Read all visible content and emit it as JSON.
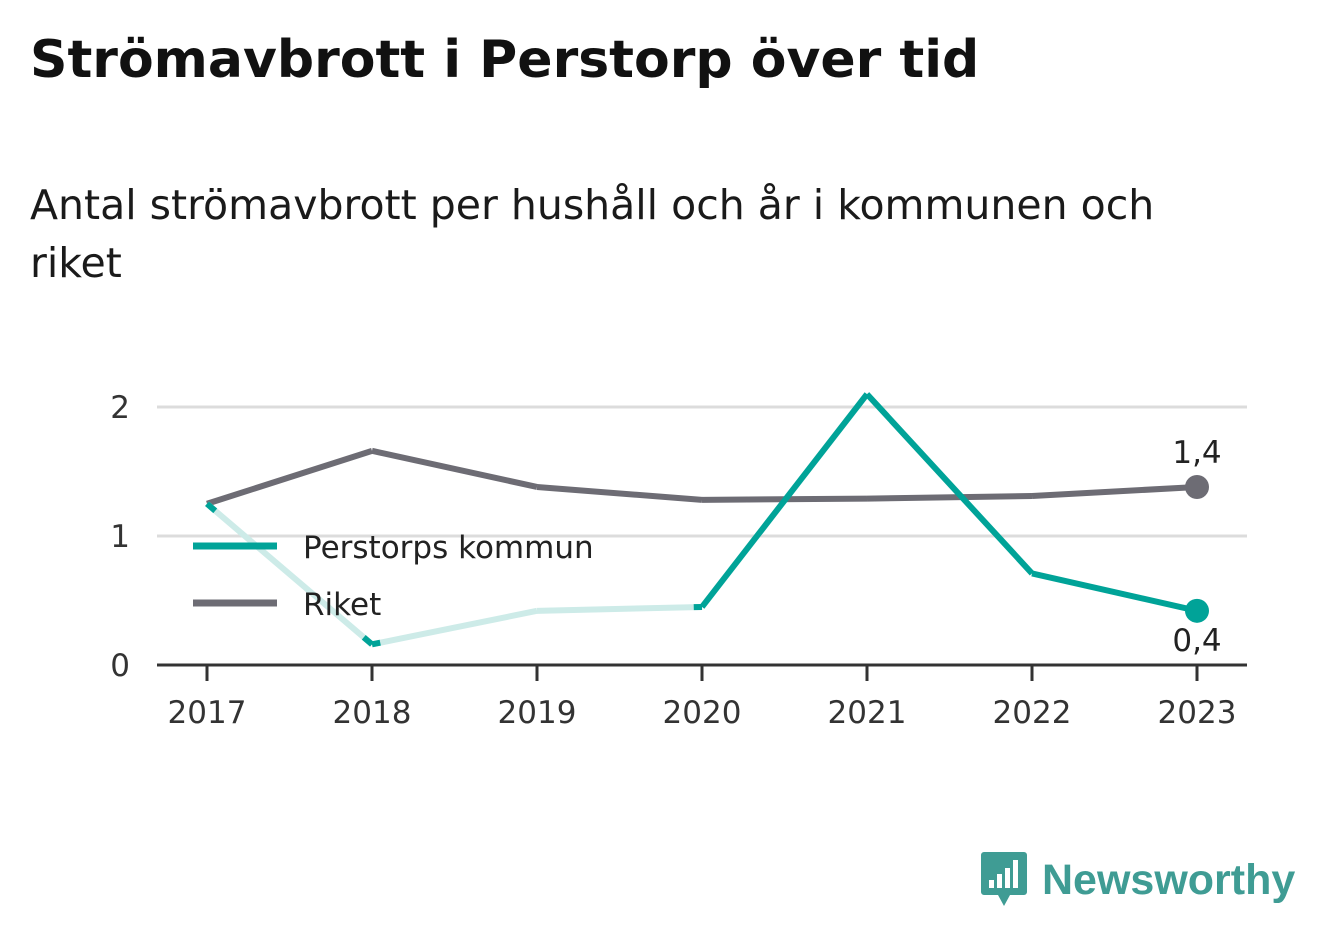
{
  "header": {
    "title": "Strömavbrott i Perstorp över tid",
    "subtitle": "Antal strömavbrott per hushåll och år i kommunen och riket"
  },
  "logo": {
    "text": "Newsworthy",
    "icon": "bar-chart-speech-bubble-icon",
    "color": "#3f9c94"
  },
  "chart_data": {
    "type": "line",
    "title": "Strömavbrott i Perstorp över tid",
    "subtitle": "Antal strömavbrott per hushåll och år i kommunen och riket",
    "xlabel": "",
    "ylabel": "",
    "categories": [
      "2017",
      "2018",
      "2019",
      "2020",
      "2021",
      "2022",
      "2023"
    ],
    "yticks": [
      0,
      1,
      2
    ],
    "ylim": [
      0,
      2.2
    ],
    "grid": true,
    "legend": "center-left",
    "series": [
      {
        "name": "Perstorps kommun",
        "values": [
          1.25,
          0.16,
          0.42,
          0.45,
          2.1,
          0.71,
          0.42
        ],
        "color": "#00a398",
        "faded_color": "#cdebe8",
        "faded_segments": [
          [
            0,
            1
          ],
          [
            1,
            2
          ],
          [
            2,
            3
          ]
        ],
        "end_label": "0,4"
      },
      {
        "name": "Riket",
        "values": [
          1.25,
          1.66,
          1.38,
          1.28,
          1.29,
          1.31,
          1.38
        ],
        "color": "#6d6c74",
        "end_label": "1,4"
      }
    ]
  }
}
